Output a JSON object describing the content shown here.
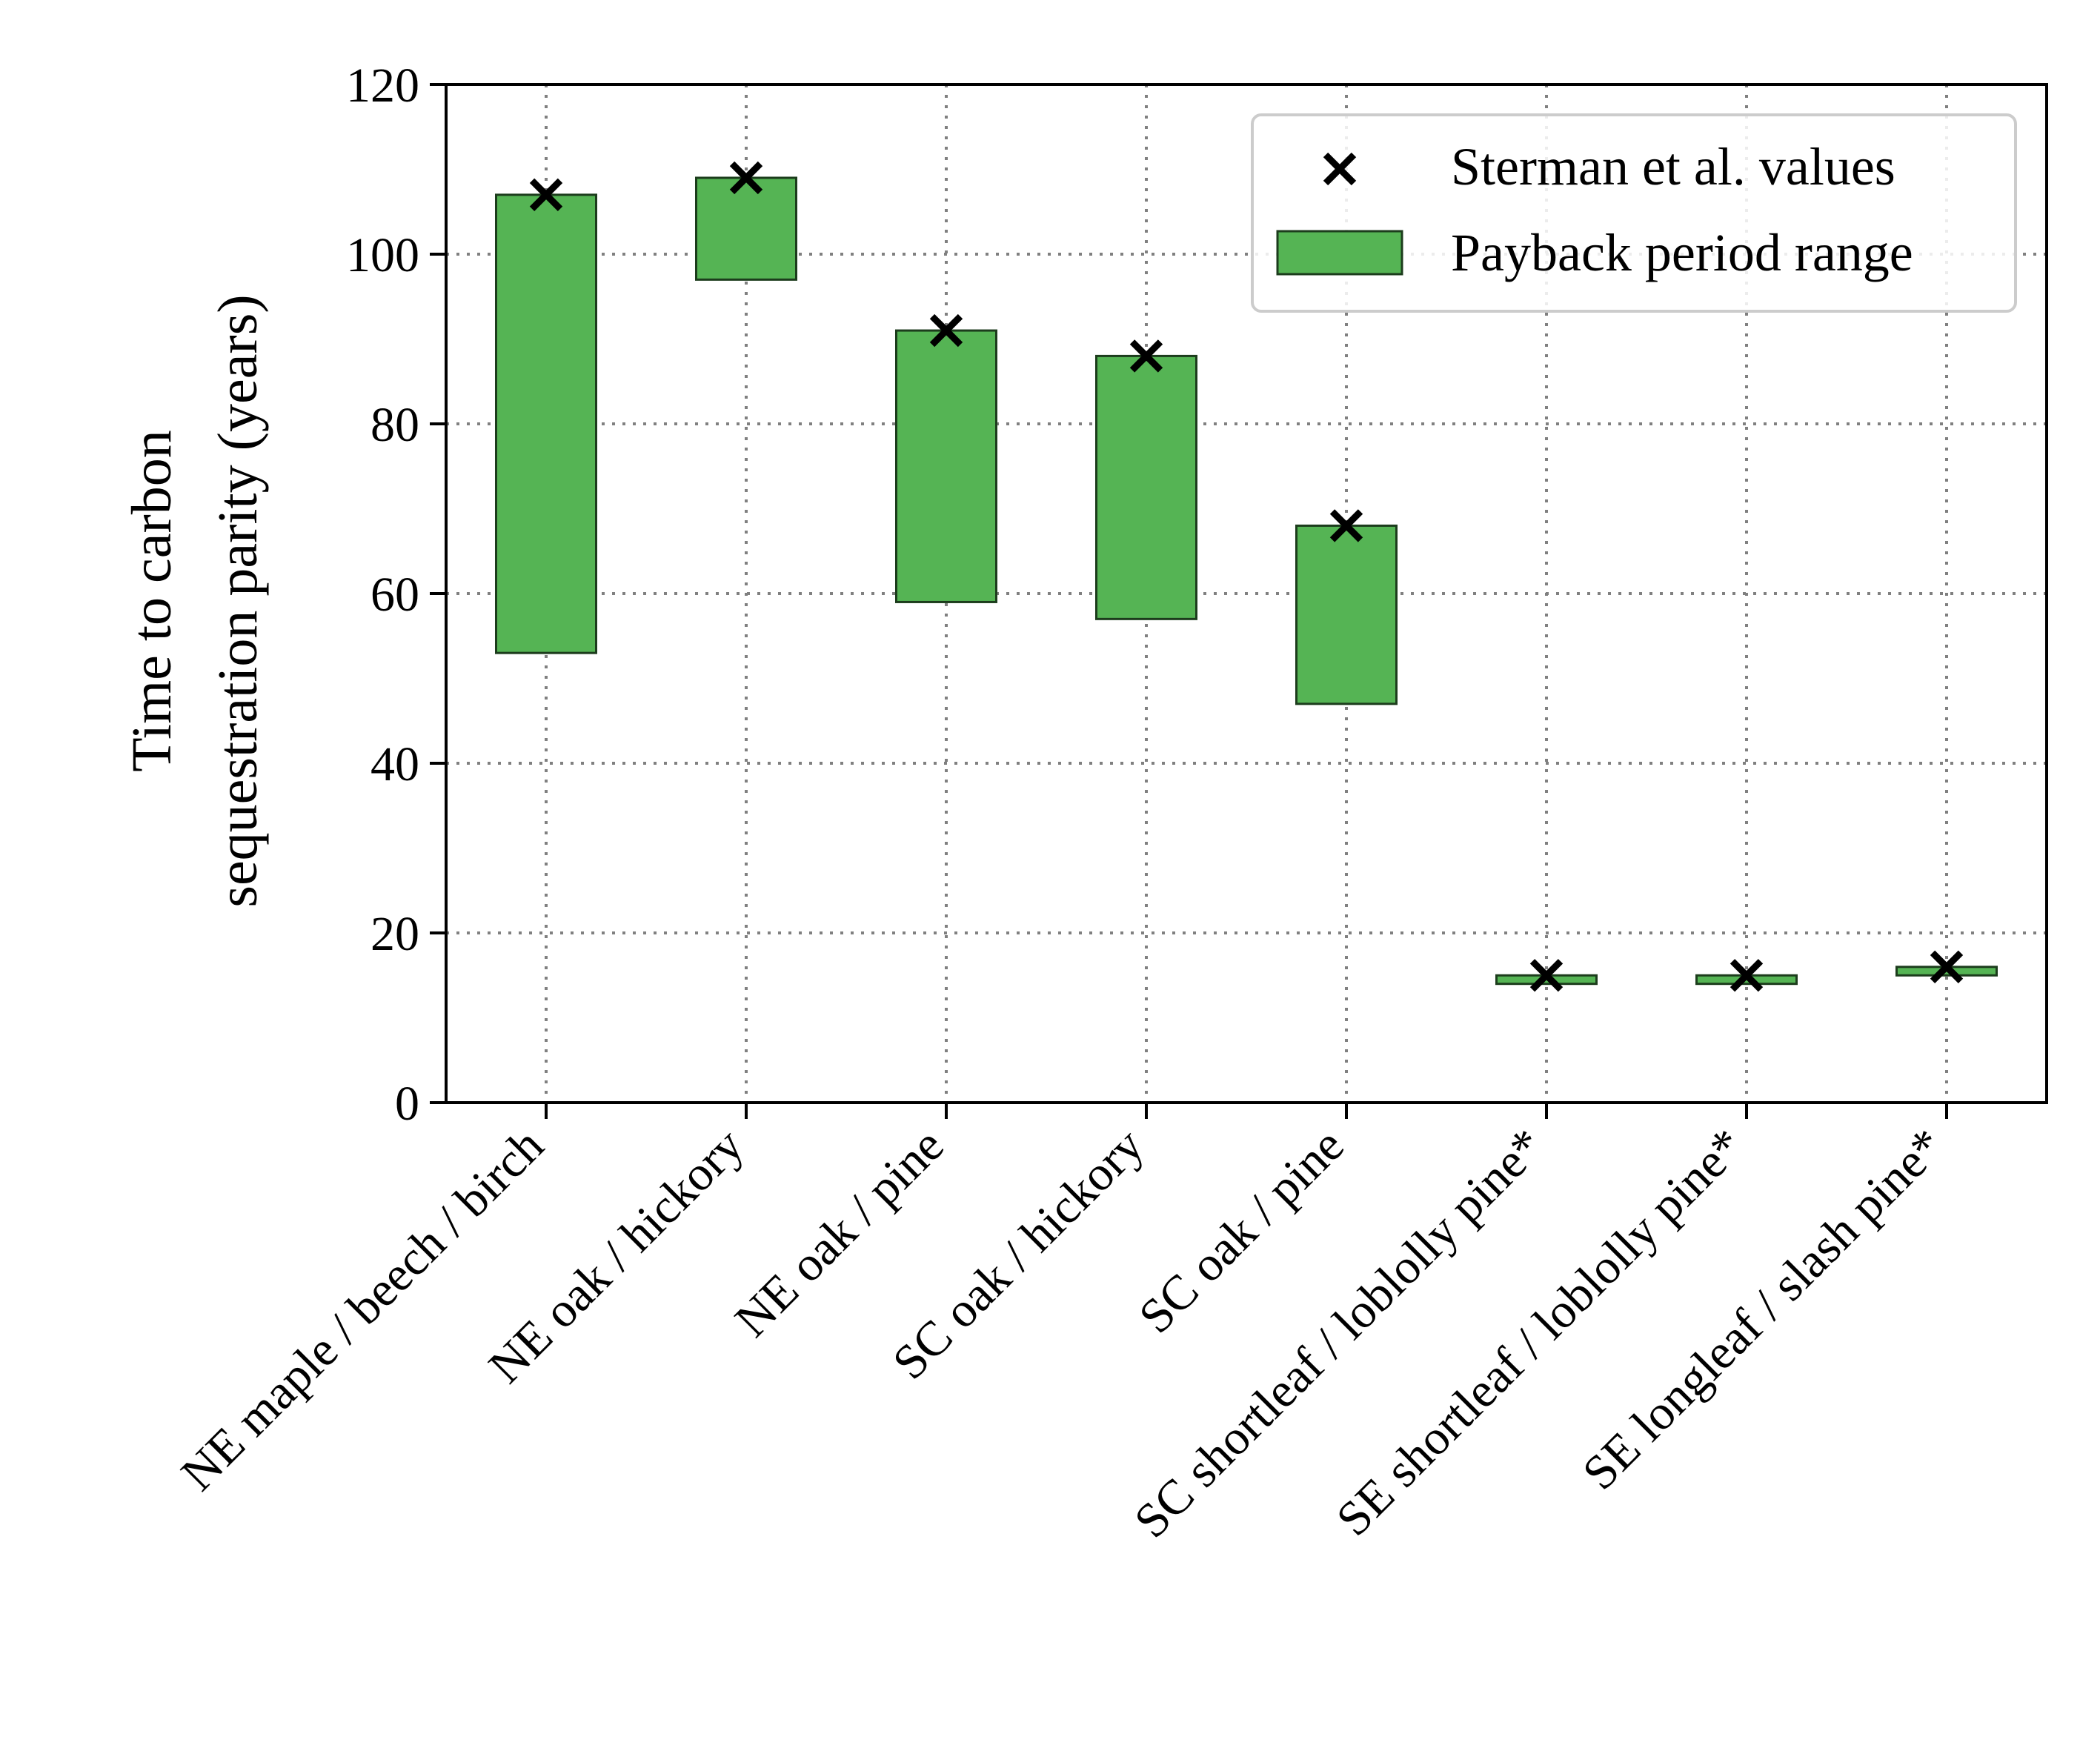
{
  "chart_data": {
    "type": "bar",
    "subtype": "floating-range-bar-with-markers",
    "categories": [
      "NE maple / beech / birch",
      "NE oak / hickory",
      "NE oak / pine",
      "SC oak / hickory",
      "SC oak / pine",
      "SC shortleaf / loblolly pine*",
      "SE shortleaf / loblolly pine*",
      "SE longleaf / slash pine*"
    ],
    "series": [
      {
        "name": "Payback period range",
        "kind": "range-bar",
        "color": "#55b454",
        "low": [
          53,
          97,
          59,
          57,
          47,
          14,
          14,
          15
        ],
        "high": [
          107,
          109,
          91,
          88,
          68,
          15,
          15,
          16
        ]
      },
      {
        "name": "Sterman et al. values",
        "kind": "x-marker",
        "color": "#000000",
        "values": [
          107,
          109,
          91,
          88,
          68,
          15,
          15,
          16
        ]
      }
    ],
    "title": "",
    "xlabel": "",
    "ylabel_lines": [
      "Time to carbon",
      "sequestration parity (years)"
    ],
    "ylim": [
      0,
      120
    ],
    "yticks": [
      0,
      20,
      40,
      60,
      80,
      100,
      120
    ],
    "grid": true,
    "legend_position": "top-right"
  }
}
